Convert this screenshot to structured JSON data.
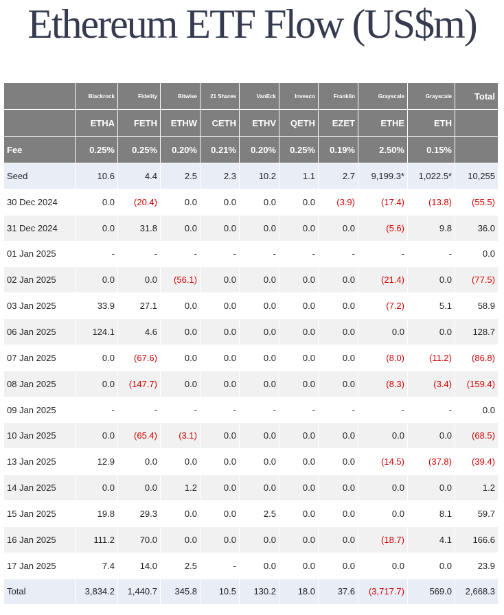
{
  "title": "Ethereum ETF Flow (US$m)",
  "colors": {
    "header_bg": "#7f7f7f",
    "negative": "#d00000",
    "title": "#353a4f",
    "highlight_row": "#e8edf6"
  },
  "header": {
    "issuers": [
      "Blackrock",
      "Fidelity",
      "Bitwise",
      "21 Shares",
      "VanEck",
      "Invesco",
      "Franklin",
      "Grayscale",
      "Grayscale"
    ],
    "total_label": "Total",
    "tickers": [
      "ETHA",
      "FETH",
      "ETHW",
      "CETH",
      "ETHV",
      "QETH",
      "EZET",
      "ETHE",
      "ETH"
    ],
    "fee_label": "Fee",
    "fees": [
      "0.25%",
      "0.25%",
      "0.20%",
      "0.21%",
      "0.20%",
      "0.25%",
      "0.19%",
      "2.50%",
      "0.15%"
    ]
  },
  "rows": [
    {
      "label": "Seed",
      "values": [
        "10.6",
        "4.4",
        "2.5",
        "2.3",
        "10.2",
        "1.1",
        "2.7",
        "9,199.3*",
        "1,022.5*"
      ],
      "total": "10,255"
    },
    {
      "label": "30 Dec 2024",
      "values": [
        "0.0",
        "(20.4)",
        "0.0",
        "0.0",
        "0.0",
        "0.0",
        "(3.9)",
        "(17.4)",
        "(13.8)"
      ],
      "total": "(55.5)"
    },
    {
      "label": "31 Dec 2024",
      "values": [
        "0.0",
        "31.8",
        "0.0",
        "0.0",
        "0.0",
        "0.0",
        "0.0",
        "(5.6)",
        "9.8"
      ],
      "total": "36.0"
    },
    {
      "label": "01 Jan 2025",
      "values": [
        "-",
        "-",
        "-",
        "-",
        "-",
        "-",
        "-",
        "-",
        "-"
      ],
      "total": "0.0"
    },
    {
      "label": "02 Jan 2025",
      "values": [
        "0.0",
        "0.0",
        "(56.1)",
        "0.0",
        "0.0",
        "0.0",
        "0.0",
        "(21.4)",
        "0.0"
      ],
      "total": "(77.5)"
    },
    {
      "label": "03 Jan 2025",
      "values": [
        "33.9",
        "27.1",
        "0.0",
        "0.0",
        "0.0",
        "0.0",
        "0.0",
        "(7.2)",
        "5.1"
      ],
      "total": "58.9"
    },
    {
      "label": "06 Jan 2025",
      "values": [
        "124.1",
        "4.6",
        "0.0",
        "0.0",
        "0.0",
        "0.0",
        "0.0",
        "0.0",
        "0.0"
      ],
      "total": "128.7"
    },
    {
      "label": "07 Jan 2025",
      "values": [
        "0.0",
        "(67.6)",
        "0.0",
        "0.0",
        "0.0",
        "0.0",
        "0.0",
        "(8.0)",
        "(11.2)"
      ],
      "total": "(86.8)"
    },
    {
      "label": "08 Jan 2025",
      "values": [
        "0.0",
        "(147.7)",
        "0.0",
        "0.0",
        "0.0",
        "0.0",
        "0.0",
        "(8.3)",
        "(3.4)"
      ],
      "total": "(159.4)"
    },
    {
      "label": "09 Jan 2025",
      "values": [
        "-",
        "-",
        "-",
        "-",
        "-",
        "-",
        "-",
        "-",
        "-"
      ],
      "total": "0.0"
    },
    {
      "label": "10 Jan 2025",
      "values": [
        "0.0",
        "(65.4)",
        "(3.1)",
        "0.0",
        "0.0",
        "0.0",
        "0.0",
        "0.0",
        "0.0"
      ],
      "total": "(68.5)"
    },
    {
      "label": "13 Jan 2025",
      "values": [
        "12.9",
        "0.0",
        "0.0",
        "0.0",
        "0.0",
        "0.0",
        "0.0",
        "(14.5)",
        "(37.8)"
      ],
      "total": "(39.4)"
    },
    {
      "label": "14 Jan 2025",
      "values": [
        "0.0",
        "0.0",
        "1.2",
        "0.0",
        "0.0",
        "0.0",
        "0.0",
        "0.0",
        "0.0"
      ],
      "total": "1.2"
    },
    {
      "label": "15 Jan 2025",
      "values": [
        "19.8",
        "29.3",
        "0.0",
        "0.0",
        "2.5",
        "0.0",
        "0.0",
        "0.0",
        "8.1"
      ],
      "total": "59.7"
    },
    {
      "label": "16 Jan 2025",
      "values": [
        "111.2",
        "70.0",
        "0.0",
        "0.0",
        "0.0",
        "0.0",
        "0.0",
        "(18.7)",
        "4.1"
      ],
      "total": "166.6"
    },
    {
      "label": "17 Jan 2025",
      "values": [
        "7.4",
        "14.0",
        "2.5",
        "-",
        "0.0",
        "0.0",
        "0.0",
        "0.0",
        "0.0"
      ],
      "total": "23.9"
    },
    {
      "label": "Total",
      "values": [
        "3,834.2",
        "1,440.7",
        "345.8",
        "10.5",
        "130.2",
        "18.0",
        "37.6",
        "(3,717.7)",
        "569.0"
      ],
      "total": "2,668.3"
    }
  ]
}
